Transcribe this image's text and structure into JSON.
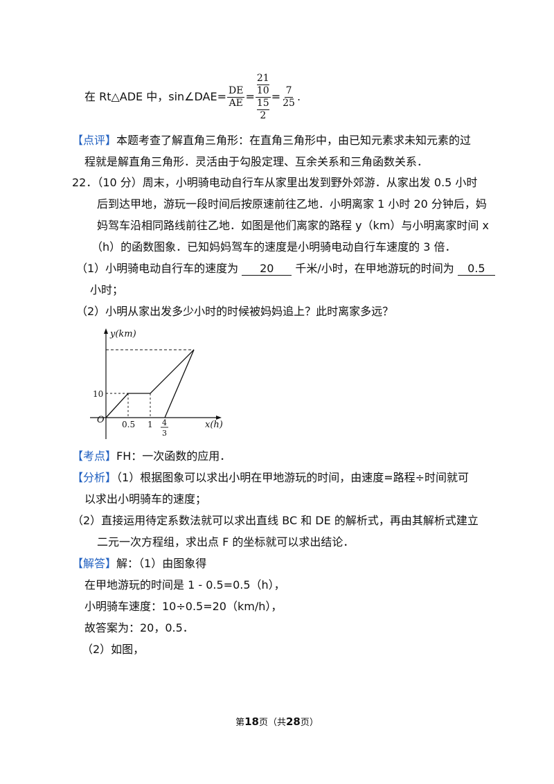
{
  "doc": {
    "sine_prefix": "在 Rt△ADE 中，sin∠DAE=",
    "sine_frac_num": "DE",
    "sine_frac_den": "AE",
    "nested_top_num": "21",
    "nested_top_den": "10",
    "nested_bot_num": "15",
    "nested_bot_den": "2",
    "result_num": "7",
    "result_den": "25",
    "result_suffix": ".",
    "comment_tag": "【点评】",
    "comment_l1": "本题考查了解直角三角形：在直角三角形中，由已知元素求未知元素的过",
    "comment_l2": "程就是解直角三角形．灵活由于勾股定理、互余关系和三角函数关系．",
    "q22_l1": "22．（10 分）周末，小明骑电动自行车从家里出发到野外郊游．从家出发 0.5 小时",
    "q22_l2": "后到达甲地，游玩一段时间后按原速前往乙地．小明离家 1 小时 20 分钟后，妈",
    "q22_l3": "妈驾车沿相同路线前往乙地．如图是他们离家的路程 y（km）与小明离家时间 x",
    "q22_l4": "（h）的函数图象．已知妈妈驾车的速度是小明骑电动自行车速度的 3 倍．",
    "p1_a": "（1）小明骑电动自行车的速度为",
    "p1_ans1": "20",
    "p1_b": "千米/小时，在甲地游玩的时间为",
    "p1_ans2": "0.5",
    "p1_l2": "小时；",
    "p2": "（2）小明从家出发多少小时的时候被妈妈追上？此时离家多远？",
    "kd_tag": "【考点】",
    "kd_text": "FH：一次函数的应用．",
    "fx_tag": "【分析】",
    "fx_l1": "（1）根据图象可以求出小明在甲地游玩的时间，由速度=路程÷时间就可",
    "fx_l2": "以求出小明骑车的速度；",
    "fx_l3": "（2）直接运用待定系数法就可以求出直线 BC 和 DE 的解析式，再由其解析式建立",
    "fx_l4": "二元一次方程组，求出点 F 的坐标就可以求出结论．",
    "jd_tag": "【解答】",
    "jd_text": "解：（1）由图象得",
    "s1": "在甲地游玩的时间是 1 - 0.5=0.5（h），",
    "s2": "小明骑车速度：10÷0.5=20（km/h），",
    "s3": "故答案为：20，0.5．",
    "s4": "（2）如图，"
  },
  "graph": {
    "y_label": "y(km)",
    "x_label": "x(h)",
    "origin": "O",
    "y_tick": "10",
    "x_tick_1": "0.5",
    "x_tick_2": "1",
    "x_tick_3_num": "4",
    "x_tick_3_den": "3"
  },
  "footer": {
    "prefix": "第",
    "page": "18",
    "mid": "页（共",
    "total": "28",
    "suffix": "页）"
  }
}
